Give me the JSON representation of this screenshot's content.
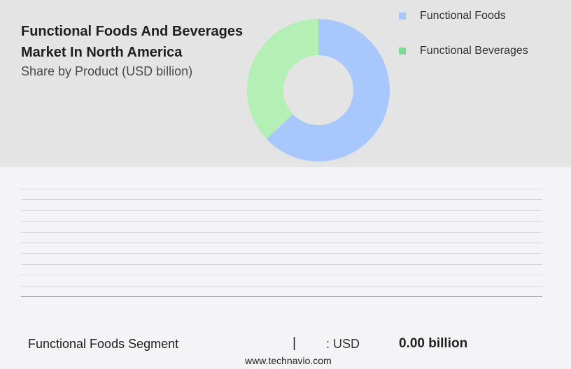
{
  "chart_data": {
    "type": "pie",
    "title": "Functional Foods And Beverages Market In North America",
    "subtitle": "Share by Product (USD billion)",
    "categories": [
      "Functional Foods",
      "Functional Beverages"
    ],
    "values": [
      63,
      37
    ],
    "colors": [
      "#a8c8fd",
      "#b4efb6"
    ],
    "legend_colors": [
      "#a8c8fd",
      "#7ddc92"
    ],
    "legend_position": "top-right"
  },
  "footer": {
    "segment_label": "Functional Foods Segment",
    "separator": "|",
    "currency_label": ": USD",
    "value": "0.00 billion",
    "source": "www.technavio.com"
  }
}
